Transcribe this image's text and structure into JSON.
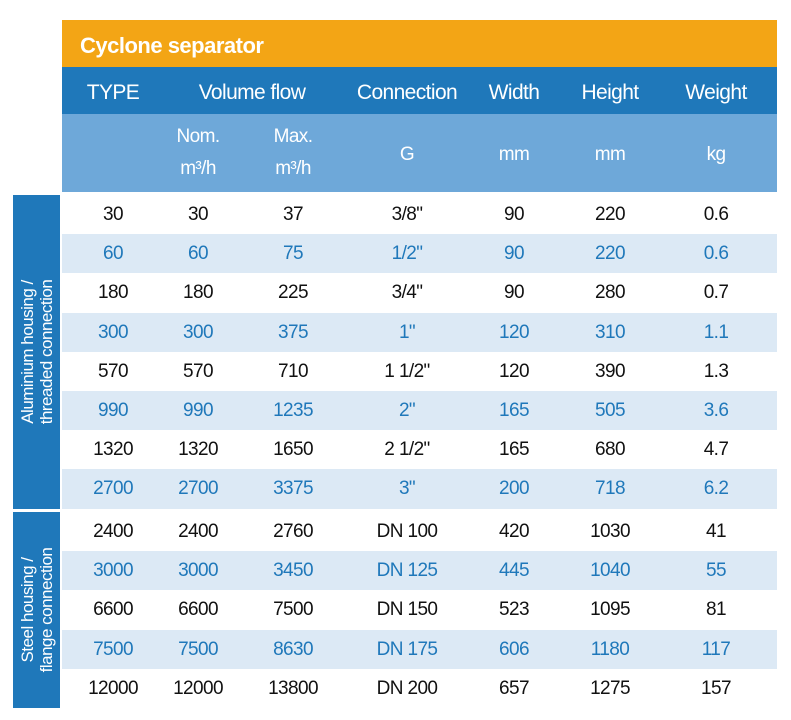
{
  "title": "Cyclone separator",
  "header": [
    "TYPE",
    "Volume flow",
    "Connection",
    "Width",
    "Height",
    "Weight"
  ],
  "subheader": {
    "nom": [
      "Nom.",
      "m³/h"
    ],
    "max": [
      "Max.",
      "m³/h"
    ],
    "connection": "G",
    "width": "mm",
    "height": "mm",
    "weight": "kg"
  },
  "groups": [
    {
      "label": [
        "Aluminium housing /",
        "threaded connection"
      ],
      "rows": [
        [
          30,
          30,
          37,
          "3/8\"",
          90,
          220,
          0.6
        ],
        [
          60,
          60,
          75,
          "1/2\"",
          90,
          220,
          0.6
        ],
        [
          180,
          180,
          225,
          "3/4\"",
          90,
          280,
          0.7
        ],
        [
          300,
          300,
          375,
          "1\"",
          120,
          310,
          1.1
        ],
        [
          570,
          570,
          710,
          "1 1/2\"",
          120,
          390,
          1.3
        ],
        [
          990,
          990,
          1235,
          "2\"",
          165,
          505,
          3.6
        ],
        [
          1320,
          1320,
          1650,
          "2 1/2\"",
          165,
          680,
          4.7
        ],
        [
          2700,
          2700,
          3375,
          "3\"",
          200,
          718,
          6.2
        ]
      ]
    },
    {
      "label": [
        "Steel housing /",
        "flange connection"
      ],
      "rows": [
        [
          2400,
          2400,
          2760,
          "DN 100",
          420,
          1030,
          41
        ],
        [
          3000,
          3000,
          3450,
          "DN 125",
          445,
          1040,
          55
        ],
        [
          6600,
          6600,
          7500,
          "DN 150",
          523,
          1095,
          81
        ],
        [
          7500,
          7500,
          8630,
          "DN 175",
          606,
          1180,
          117
        ],
        [
          12000,
          12000,
          13800,
          "DN 200",
          657,
          1275,
          157
        ]
      ]
    }
  ]
}
